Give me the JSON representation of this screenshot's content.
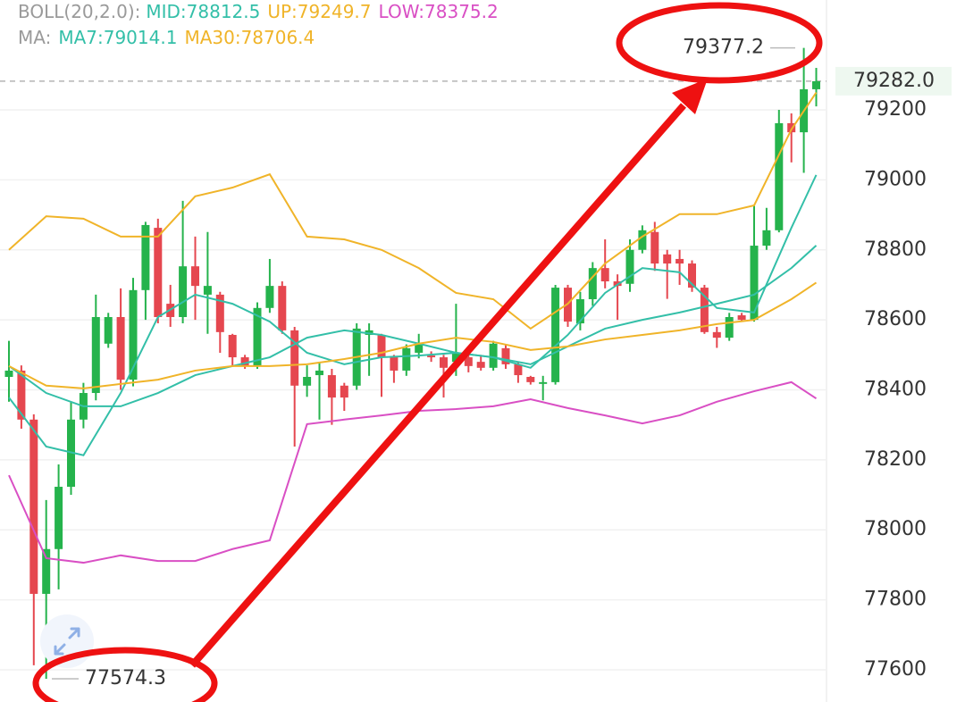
{
  "chart_data": {
    "type": "candlestick",
    "legend": [
      [
        {
          "text": "BOLL(20,2.0):",
          "color": "#9a9a9a"
        },
        {
          "text": "MID:78812.5",
          "color": "#33bfa8"
        },
        {
          "text": "UP:79249.7",
          "color": "#f0b429"
        },
        {
          "text": "LOW:78375.2",
          "color": "#d94fc4"
        }
      ],
      [
        {
          "text": "MA:",
          "color": "#9a9a9a"
        },
        {
          "text": "MA7:79014.1",
          "color": "#33bfa8"
        },
        {
          "text": "MA30:78706.4",
          "color": "#f0b429"
        }
      ]
    ],
    "up_color": "#25b34c",
    "down_color": "#e5474f",
    "open": [
      78437,
      78455,
      78315,
      77817,
      77945,
      78123,
      78315,
      78391,
      78532,
      78608,
      78429,
      78685,
      78863,
      78646,
      78608,
      78753,
      78672,
      78672,
      78557,
      78493,
      78468,
      78634,
      78697,
      78570,
      78412,
      78442,
      78442,
      78412,
      78412,
      78557,
      78557,
      78493,
      78455,
      78506,
      78498,
      78493,
      78480,
      78493,
      78480,
      78463,
      78519,
      78473,
      78437,
      78417,
      78422,
      78692,
      78590,
      78659,
      78748,
      78710,
      78703,
      78800,
      78851,
      78787,
      78774,
      78761,
      78692,
      78565,
      78549,
      78613,
      78600,
      78812,
      78856,
      79162,
      79136,
      79259
    ],
    "high": [
      78540,
      78470,
      78330,
      78085,
      78187,
      78366,
      78420,
      78672,
      78620,
      78690,
      78720,
      78880,
      78889,
      78700,
      78940,
      78838,
      78851,
      78680,
      78560,
      78500,
      78650,
      78774,
      78710,
      78580,
      78470,
      78480,
      78460,
      78420,
      78590,
      78590,
      78560,
      78500,
      78530,
      78560,
      78510,
      78500,
      78646,
      78500,
      78500,
      78540,
      78530,
      78480,
      78440,
      78440,
      78700,
      78700,
      78680,
      78765,
      78830,
      78730,
      78830,
      78870,
      78880,
      78800,
      78800,
      78770,
      78700,
      78580,
      78620,
      78620,
      78927,
      78920,
      79200,
      79190,
      79377.2,
      79320
    ],
    "low": [
      78366,
      78289,
      77613,
      77574.3,
      77830,
      78100,
      78290,
      78370,
      78520,
      78400,
      78410,
      78600,
      78590,
      78580,
      78590,
      78600,
      78560,
      78506,
      78470,
      78460,
      78460,
      78620,
      78560,
      78238,
      78380,
      78315,
      78300,
      78340,
      78400,
      78440,
      78380,
      78420,
      78440,
      78490,
      78480,
      78378,
      78440,
      78450,
      78455,
      78455,
      78460,
      78420,
      78415,
      78370,
      78415,
      78580,
      78570,
      78640,
      78690,
      78600,
      78680,
      78790,
      78740,
      78660,
      78700,
      78680,
      78560,
      78520,
      78540,
      78595,
      78595,
      78800,
      78850,
      79050,
      79020,
      79210
    ],
    "close": [
      78455,
      78315,
      77817,
      77945,
      78123,
      78315,
      78391,
      78608,
      78608,
      78429,
      78685,
      78871,
      78608,
      78608,
      78753,
      78697,
      78697,
      78565,
      78493,
      78468,
      78634,
      78697,
      78570,
      78412,
      78437,
      78455,
      78378,
      78378,
      78575,
      78570,
      78493,
      78455,
      78519,
      78532,
      78493,
      78463,
      78506,
      78468,
      78463,
      78532,
      78473,
      78442,
      78422,
      78422,
      78692,
      78595,
      78659,
      78748,
      78710,
      78697,
      78800,
      78856,
      78761,
      78761,
      78761,
      78692,
      78565,
      78549,
      78608,
      78600,
      78812,
      78856,
      79162,
      79136,
      79259,
      79282
    ],
    "lines": [
      {
        "name": "UP",
        "color": "#f0b429",
        "x": [
          0,
          3,
          6,
          9,
          12,
          15,
          18,
          21,
          24,
          27,
          30,
          33,
          36,
          39,
          42,
          45,
          48,
          51,
          54,
          57,
          60,
          63,
          65
        ],
        "values": [
          78800,
          78896,
          78889,
          78838,
          78838,
          78953,
          78978,
          79016,
          78838,
          78830,
          78800,
          78748,
          78677,
          78659,
          78575,
          78646,
          78761,
          78838,
          78902,
          78902,
          78927,
          79144,
          79249.7
        ]
      },
      {
        "name": "LOW",
        "color": "#d94fc4",
        "x": [
          0,
          3,
          6,
          9,
          12,
          15,
          18,
          21,
          24,
          27,
          30,
          33,
          36,
          39,
          42,
          45,
          48,
          51,
          54,
          57,
          60,
          63,
          65
        ],
        "values": [
          78156,
          77919,
          77906,
          77927,
          77911,
          77911,
          77945,
          77970,
          78302,
          78315,
          78327,
          78340,
          78345,
          78353,
          78373,
          78348,
          78327,
          78304,
          78327,
          78366,
          78396,
          78422,
          78375.2
        ]
      },
      {
        "name": "MID",
        "color": "#33bfa8",
        "x": [
          0,
          3,
          6,
          9,
          12,
          15,
          18,
          21,
          24,
          27,
          30,
          33,
          36,
          39,
          42,
          45,
          48,
          51,
          54,
          57,
          60,
          63,
          65
        ],
        "values": [
          78468,
          78391,
          78353,
          78353,
          78391,
          78442,
          78468,
          78493,
          78549,
          78570,
          78557,
          78532,
          78506,
          78493,
          78473,
          78524,
          78575,
          78600,
          78621,
          78646,
          78672,
          78748,
          78812.5
        ]
      },
      {
        "name": "MA7",
        "color": "#33bfa8",
        "x": [
          0,
          3,
          6,
          9,
          12,
          15,
          18,
          21,
          24,
          27,
          30,
          33,
          36,
          39,
          42,
          45,
          48,
          51,
          54,
          57,
          60,
          63,
          65
        ],
        "values": [
          78378,
          78238,
          78213,
          78391,
          78608,
          78672,
          78646,
          78595,
          78506,
          78473,
          78493,
          78498,
          78506,
          78493,
          78463,
          78557,
          78677,
          78748,
          78736,
          78634,
          78621,
          78863,
          79014.1
        ]
      },
      {
        "name": "MA30",
        "color": "#f0b429",
        "x": [
          0,
          3,
          6,
          9,
          12,
          15,
          18,
          21,
          24,
          27,
          30,
          33,
          36,
          39,
          42,
          45,
          48,
          51,
          54,
          57,
          60,
          63,
          65
        ],
        "values": [
          78468,
          78412,
          78404,
          78417,
          78429,
          78455,
          78468,
          78468,
          78473,
          78488,
          78506,
          78532,
          78549,
          78537,
          78514,
          78524,
          78544,
          78557,
          78570,
          78588,
          78600,
          78659,
          78706.4
        ]
      }
    ],
    "ylim": [
      77508,
      79514
    ],
    "yticks": [
      77600,
      77800,
      78000,
      78200,
      78400,
      78600,
      78800,
      79000,
      79200
    ],
    "grid": true,
    "last_price": {
      "value": 79282,
      "label": "79282.0",
      "color": "#25b34c"
    },
    "high_marker": 79377.2,
    "low_marker": 77574.3
  }
}
